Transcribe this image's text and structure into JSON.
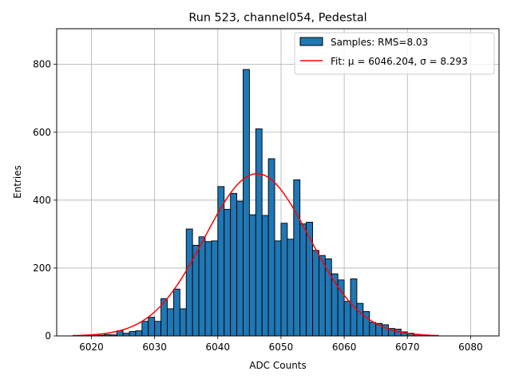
{
  "chart_data": {
    "type": "bar",
    "title": "Run 523, channel054, Pedestal",
    "xlabel": "ADC Counts",
    "ylabel": "Entries",
    "xlim": [
      6014.5,
      6084.5
    ],
    "ylim": [
      0,
      905
    ],
    "xticks": [
      6020,
      6030,
      6040,
      6050,
      6060,
      6070,
      6080
    ],
    "yticks": [
      0,
      200,
      400,
      600,
      800
    ],
    "grid": true,
    "legend_position": "top-right",
    "bin_width": 1,
    "series": [
      {
        "name": "Samples: RMS=8.03",
        "color": "#1f77b4",
        "bin_starts": [
          6020,
          6021,
          6022,
          6023,
          6024,
          6025,
          6026,
          6027,
          6028,
          6029,
          6030,
          6031,
          6032,
          6033,
          6034,
          6035,
          6036,
          6037,
          6038,
          6039,
          6040,
          6041,
          6042,
          6043,
          6044,
          6045,
          6046,
          6047,
          6048,
          6049,
          6050,
          6051,
          6052,
          6053,
          6054,
          6055,
          6056,
          6057,
          6058,
          6059,
          6060,
          6061,
          6062,
          6063,
          6064,
          6065,
          6066,
          6067,
          6068,
          6069,
          6070,
          6071,
          6072
        ],
        "counts": [
          1,
          2,
          4,
          3,
          15,
          8,
          13,
          15,
          43,
          55,
          43,
          110,
          80,
          138,
          80,
          315,
          267,
          292,
          278,
          280,
          440,
          373,
          420,
          397,
          785,
          357,
          610,
          355,
          522,
          280,
          332,
          285,
          460,
          330,
          335,
          252,
          237,
          227,
          183,
          165,
          102,
          168,
          96,
          72,
          40,
          37,
          33,
          22,
          20,
          12,
          8,
          5,
          2
        ]
      },
      {
        "name": "Fit: μ = 6046.204, σ = 8.293",
        "color": "#ff0000",
        "mu": 6046.204,
        "sigma": 8.293,
        "amplitude": 478,
        "x_range": [
          6017,
          6075
        ]
      }
    ]
  }
}
